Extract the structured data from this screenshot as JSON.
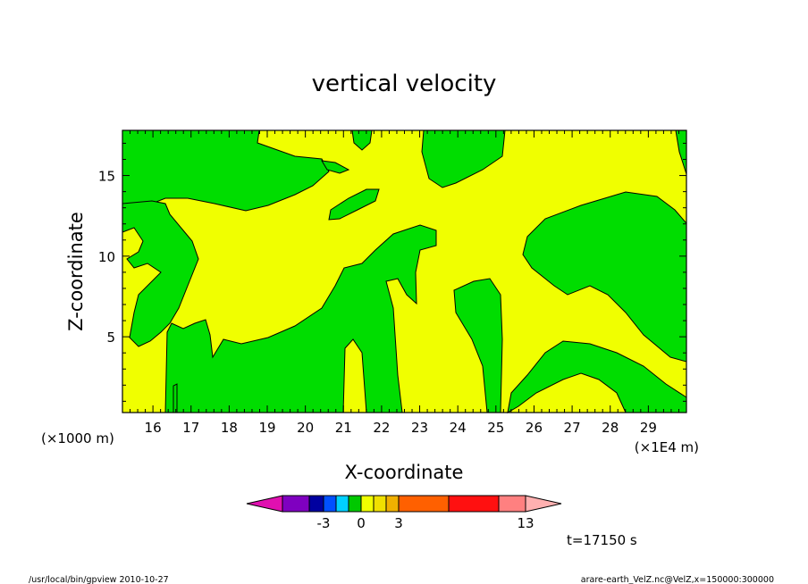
{
  "chart_data": {
    "type": "contour",
    "title": "vertical velocity",
    "xlabel": "X-coordinate",
    "ylabel": "Z-coordinate",
    "x_units": "(×1E4 m)",
    "y_units": "(×1000 m)",
    "xlim": [
      15.2,
      30.0
    ],
    "ylim": [
      0.3,
      17.8
    ],
    "x_ticks": [
      "16",
      "17",
      "18",
      "19",
      "20",
      "21",
      "22",
      "23",
      "24",
      "25",
      "26",
      "27",
      "28",
      "29"
    ],
    "y_ticks": [
      "5",
      "10",
      "15"
    ],
    "colorbar": {
      "colors": [
        "#e010b0",
        "#7f00c0",
        "#0000a0",
        "#0050ff",
        "#00d0ff",
        "#00c800",
        "#f0ff00",
        "#f0e000",
        "#f0b000",
        "#ff6000",
        "#ff1010",
        "#ff8080",
        "#ffb0b0"
      ],
      "tick_labels": [
        "-3",
        "0",
        "3",
        "13"
      ]
    },
    "time_label": "t=17150 s",
    "colors": {
      "positive": "#f0ff00",
      "negative": "#00dd00",
      "line": "#000000"
    }
  },
  "footer": {
    "left": "/usr/local/bin/gpview   2010-10-27",
    "right": "arare-earth_VelZ.nc@VelZ,x=150000:300000"
  }
}
